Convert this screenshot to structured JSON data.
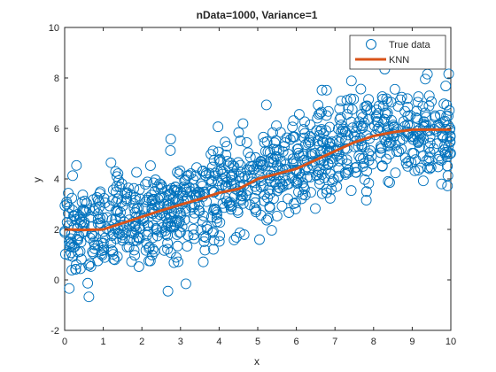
{
  "chart_data": {
    "type": "scatter",
    "title": "nData=1000, Variance=1",
    "xlabel": "x",
    "ylabel": "y",
    "xlim": [
      0,
      10
    ],
    "ylim": [
      -2,
      10
    ],
    "xticks": [
      "0",
      "1",
      "2",
      "3",
      "4",
      "5",
      "6",
      "7",
      "8",
      "9",
      "10"
    ],
    "yticks": [
      "-2",
      "0",
      "2",
      "4",
      "6",
      "8",
      "10"
    ],
    "grid": false,
    "legend_position": "top-right",
    "colors": {
      "scatter": "#0072BD",
      "line": "#D95319",
      "axis": "#262626"
    },
    "series": [
      {
        "name": "True data",
        "kind": "scatter",
        "marker": "open-circle",
        "n_points": 1000,
        "noise_variance": 1,
        "trend": {
          "x": [
            0,
            0.5,
            1,
            2,
            3,
            4,
            5,
            6,
            7,
            8,
            8.5,
            9,
            10
          ],
          "y": [
            2.0,
            2.0,
            2.0,
            2.5,
            3.0,
            3.5,
            4.1,
            4.5,
            5.1,
            5.7,
            5.9,
            5.95,
            5.95
          ]
        },
        "seed": 20240611
      },
      {
        "name": "KNN",
        "kind": "line",
        "x": [
          0,
          0.5,
          1,
          1.5,
          2,
          2.5,
          3,
          3.5,
          4,
          4.5,
          5,
          5.5,
          6,
          6.5,
          7,
          7.5,
          8,
          8.5,
          9,
          9.5,
          10
        ],
        "y": [
          2.0,
          1.98,
          2.0,
          2.25,
          2.5,
          2.75,
          2.98,
          3.2,
          3.45,
          3.6,
          4.0,
          4.2,
          4.4,
          4.75,
          5.1,
          5.45,
          5.7,
          5.85,
          5.95,
          5.95,
          5.95
        ]
      }
    ]
  }
}
